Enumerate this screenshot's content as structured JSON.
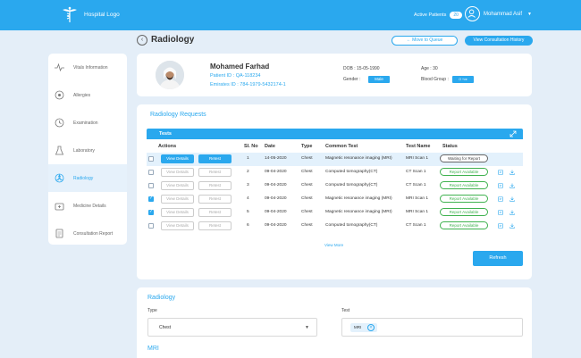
{
  "header": {
    "logo_text": "Hospital Logo",
    "active_patients_label": "Active Patients",
    "active_patients_count": "20",
    "user_name": "Mohammad Asif"
  },
  "page": {
    "title": "Radiology",
    "move_to_queue": "Move to Queue",
    "view_history": "View Consultation History"
  },
  "sidebar": {
    "items": [
      {
        "label": "Vitals Information",
        "icon": "vitals-icon"
      },
      {
        "label": "Allergies",
        "icon": "allergies-icon"
      },
      {
        "label": "Examination",
        "icon": "examination-icon"
      },
      {
        "label": "Laboratory",
        "icon": "laboratory-icon"
      },
      {
        "label": "Radiology",
        "icon": "radiology-icon",
        "active": true
      },
      {
        "label": "Medicine Details",
        "icon": "medicine-icon"
      },
      {
        "label": "Consultation Report",
        "icon": "report-icon"
      }
    ]
  },
  "patient": {
    "name": "Mohamed Farhad",
    "patient_id": "Patient ID : QA-118234",
    "emirates_id": "Emirates ID :  784-1979-5432174-1",
    "dob": "DOB : 15-05-1990",
    "gender_label": "Gender :",
    "gender": "Male",
    "age": "Age : 30",
    "blood_label": "Blood Group :",
    "blood_group": "O +ve"
  },
  "requests": {
    "title": "Radiology Requests",
    "tests_label": "Tests",
    "columns": [
      "Actions",
      "Sl. No",
      "Date",
      "Type",
      "Common Test",
      "Test Name",
      "Status"
    ],
    "view_details": "View Details",
    "retest": "Retest",
    "rows": [
      {
        "sl": "1",
        "date": "14-05-2020",
        "type": "Chest",
        "common": "Magnetic resonance imaging (MRI)",
        "test": "MRI Scan 1",
        "status": "Waiting for Report",
        "checked": false,
        "selected": true
      },
      {
        "sl": "2",
        "date": "09-04-2020",
        "type": "Chest",
        "common": "Computed tomography(CT)",
        "test": "CT Scan 1",
        "status": "Report Available",
        "checked": false
      },
      {
        "sl": "3",
        "date": "09-04-2020",
        "type": "Chest",
        "common": "Computed tomography(CT)",
        "test": "CT Scan 1",
        "status": "Report Available",
        "checked": false
      },
      {
        "sl": "4",
        "date": "09-04-2020",
        "type": "Chest",
        "common": "Magnetic resonance imaging (MRI)",
        "test": "MRI Scan 1",
        "status": "Report Available",
        "checked": true
      },
      {
        "sl": "5",
        "date": "09-04-2020",
        "type": "Chest",
        "common": "Magnetic resonance imaging (MRI)",
        "test": "MRI Scan 1",
        "status": "Report Available",
        "checked": true
      },
      {
        "sl": "6",
        "date": "09-04-2020",
        "type": "Chest",
        "common": "Computed tomography(CT)",
        "test": "CT Scan 1",
        "status": "Report Available",
        "checked": false
      }
    ],
    "view_more": "View More",
    "refresh": "Refresh"
  },
  "radiology_form": {
    "title": "Radiology",
    "type_label": "Type",
    "type_value": "Chest",
    "test_label": "Test",
    "test_chip": "MRI",
    "section": "MRI"
  },
  "colors": {
    "primary": "#2aa8ee",
    "success": "#3fb24f",
    "background": "#e4eef8"
  }
}
